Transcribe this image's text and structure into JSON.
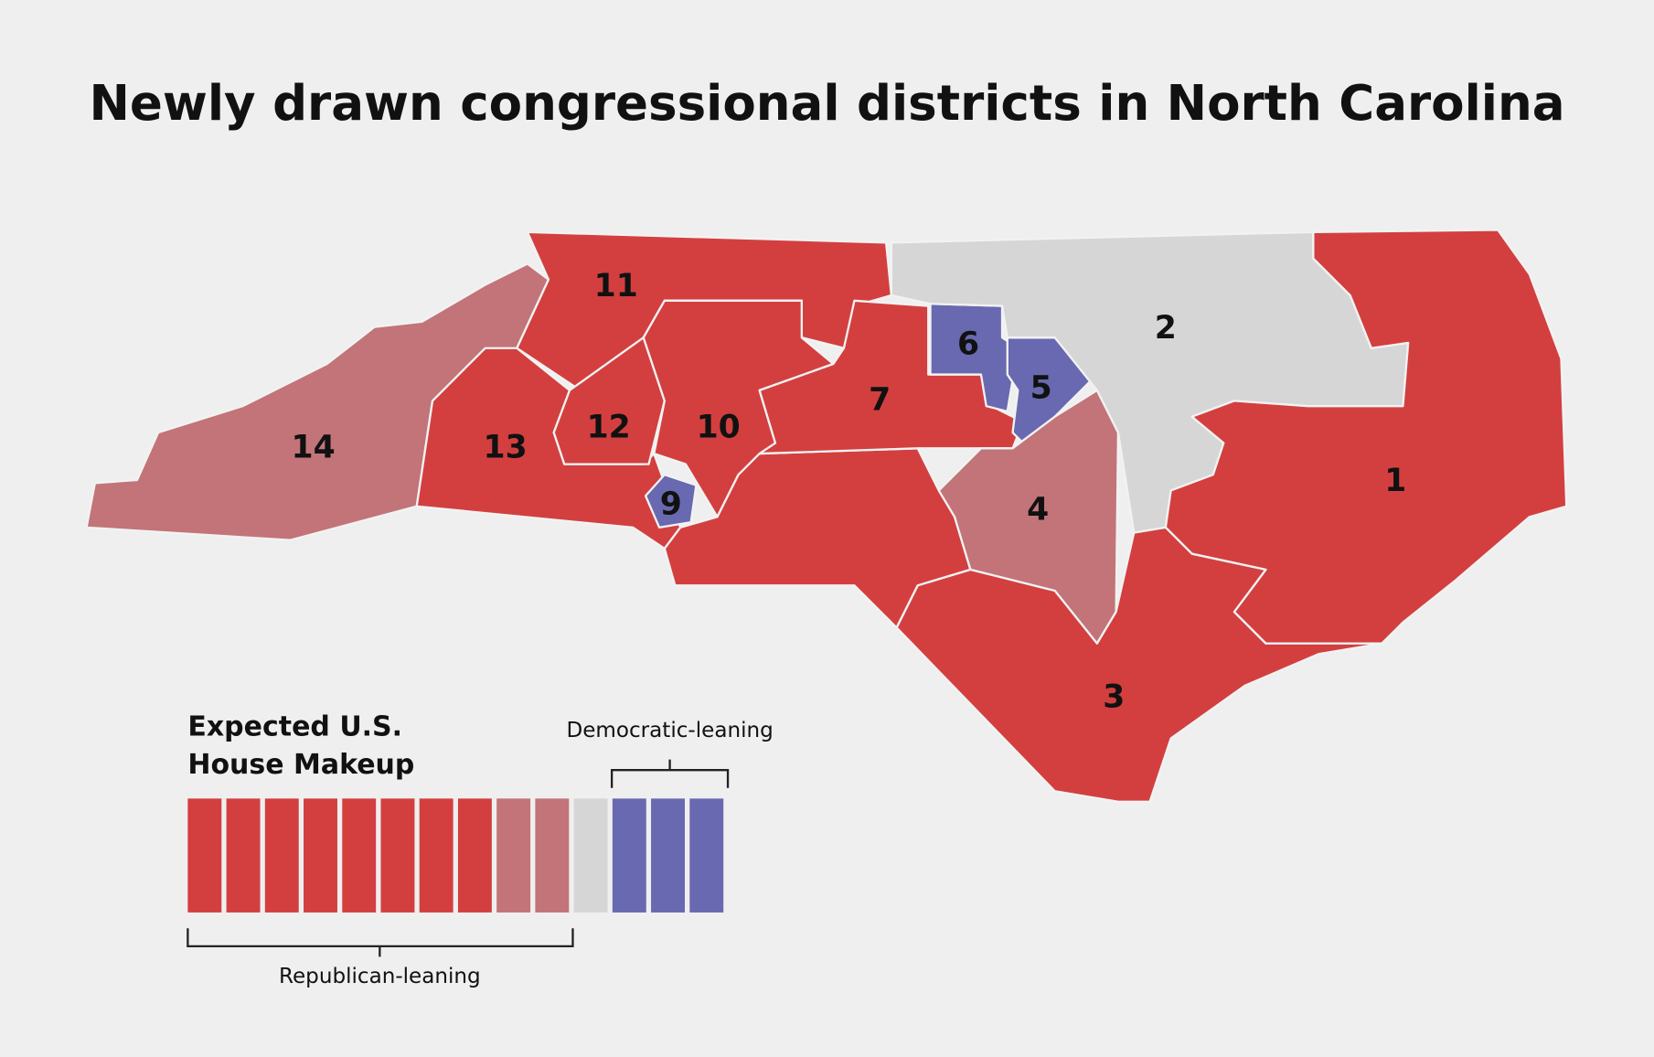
{
  "title": "Newly drawn congressional districts in North Carolina",
  "districts": [
    "1",
    "2",
    "3",
    "4",
    "5",
    "6",
    "7",
    "9",
    "10",
    "11",
    "12",
    "13",
    "14"
  ],
  "legend": {
    "title": [
      "Expected U.S.",
      "House Makeup"
    ],
    "republican_label": "Republican-leaning",
    "democratic_label": "Democratic-leaning",
    "cells": [
      "#d33f3f",
      "#d33f3f",
      "#d33f3f",
      "#d33f3f",
      "#d33f3f",
      "#d33f3f",
      "#d33f3f",
      "#d33f3f",
      "#c27479",
      "#c27479",
      "#d6d6d6",
      "#6869b0",
      "#6869b0",
      "#6869b0"
    ]
  }
}
